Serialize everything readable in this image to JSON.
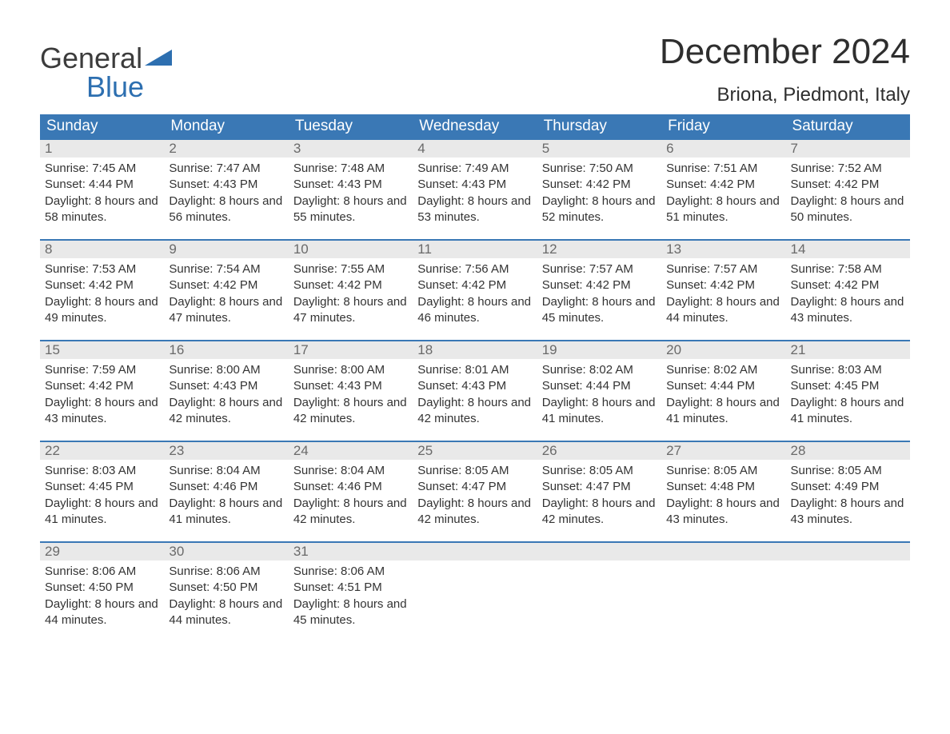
{
  "logo": {
    "line1": "General",
    "line2": "Blue"
  },
  "title": {
    "month": "December 2024",
    "location": "Briona, Piedmont, Italy"
  },
  "colors": {
    "header_bg": "#3a78b5",
    "header_text": "#ffffff",
    "border": "#3a78b5",
    "daybar_bg": "#e9e9e9",
    "daybar_text": "#6a6a6a",
    "body_text": "#333333",
    "logo_blue": "#2d6fb0",
    "logo_gray": "#3c3c3c",
    "background": "#ffffff"
  },
  "fontsize": {
    "title_month": 44,
    "title_location": 24,
    "header": 19,
    "daynum": 17,
    "body": 15,
    "logo": 36
  },
  "dayNames": [
    "Sunday",
    "Monday",
    "Tuesday",
    "Wednesday",
    "Thursday",
    "Friday",
    "Saturday"
  ],
  "weeks": [
    [
      {
        "n": "1",
        "sr": "7:45 AM",
        "ss": "4:44 PM",
        "dl": "8 hours and 58 minutes."
      },
      {
        "n": "2",
        "sr": "7:47 AM",
        "ss": "4:43 PM",
        "dl": "8 hours and 56 minutes."
      },
      {
        "n": "3",
        "sr": "7:48 AM",
        "ss": "4:43 PM",
        "dl": "8 hours and 55 minutes."
      },
      {
        "n": "4",
        "sr": "7:49 AM",
        "ss": "4:43 PM",
        "dl": "8 hours and 53 minutes."
      },
      {
        "n": "5",
        "sr": "7:50 AM",
        "ss": "4:42 PM",
        "dl": "8 hours and 52 minutes."
      },
      {
        "n": "6",
        "sr": "7:51 AM",
        "ss": "4:42 PM",
        "dl": "8 hours and 51 minutes."
      },
      {
        "n": "7",
        "sr": "7:52 AM",
        "ss": "4:42 PM",
        "dl": "8 hours and 50 minutes."
      }
    ],
    [
      {
        "n": "8",
        "sr": "7:53 AM",
        "ss": "4:42 PM",
        "dl": "8 hours and 49 minutes."
      },
      {
        "n": "9",
        "sr": "7:54 AM",
        "ss": "4:42 PM",
        "dl": "8 hours and 47 minutes."
      },
      {
        "n": "10",
        "sr": "7:55 AM",
        "ss": "4:42 PM",
        "dl": "8 hours and 47 minutes."
      },
      {
        "n": "11",
        "sr": "7:56 AM",
        "ss": "4:42 PM",
        "dl": "8 hours and 46 minutes."
      },
      {
        "n": "12",
        "sr": "7:57 AM",
        "ss": "4:42 PM",
        "dl": "8 hours and 45 minutes."
      },
      {
        "n": "13",
        "sr": "7:57 AM",
        "ss": "4:42 PM",
        "dl": "8 hours and 44 minutes."
      },
      {
        "n": "14",
        "sr": "7:58 AM",
        "ss": "4:42 PM",
        "dl": "8 hours and 43 minutes."
      }
    ],
    [
      {
        "n": "15",
        "sr": "7:59 AM",
        "ss": "4:42 PM",
        "dl": "8 hours and 43 minutes."
      },
      {
        "n": "16",
        "sr": "8:00 AM",
        "ss": "4:43 PM",
        "dl": "8 hours and 42 minutes."
      },
      {
        "n": "17",
        "sr": "8:00 AM",
        "ss": "4:43 PM",
        "dl": "8 hours and 42 minutes."
      },
      {
        "n": "18",
        "sr": "8:01 AM",
        "ss": "4:43 PM",
        "dl": "8 hours and 42 minutes."
      },
      {
        "n": "19",
        "sr": "8:02 AM",
        "ss": "4:44 PM",
        "dl": "8 hours and 41 minutes."
      },
      {
        "n": "20",
        "sr": "8:02 AM",
        "ss": "4:44 PM",
        "dl": "8 hours and 41 minutes."
      },
      {
        "n": "21",
        "sr": "8:03 AM",
        "ss": "4:45 PM",
        "dl": "8 hours and 41 minutes."
      }
    ],
    [
      {
        "n": "22",
        "sr": "8:03 AM",
        "ss": "4:45 PM",
        "dl": "8 hours and 41 minutes."
      },
      {
        "n": "23",
        "sr": "8:04 AM",
        "ss": "4:46 PM",
        "dl": "8 hours and 41 minutes."
      },
      {
        "n": "24",
        "sr": "8:04 AM",
        "ss": "4:46 PM",
        "dl": "8 hours and 42 minutes."
      },
      {
        "n": "25",
        "sr": "8:05 AM",
        "ss": "4:47 PM",
        "dl": "8 hours and 42 minutes."
      },
      {
        "n": "26",
        "sr": "8:05 AM",
        "ss": "4:47 PM",
        "dl": "8 hours and 42 minutes."
      },
      {
        "n": "27",
        "sr": "8:05 AM",
        "ss": "4:48 PM",
        "dl": "8 hours and 43 minutes."
      },
      {
        "n": "28",
        "sr": "8:05 AM",
        "ss": "4:49 PM",
        "dl": "8 hours and 43 minutes."
      }
    ],
    [
      {
        "n": "29",
        "sr": "8:06 AM",
        "ss": "4:50 PM",
        "dl": "8 hours and 44 minutes."
      },
      {
        "n": "30",
        "sr": "8:06 AM",
        "ss": "4:50 PM",
        "dl": "8 hours and 44 minutes."
      },
      {
        "n": "31",
        "sr": "8:06 AM",
        "ss": "4:51 PM",
        "dl": "8 hours and 45 minutes."
      },
      null,
      null,
      null,
      null
    ]
  ],
  "labels": {
    "sunrise": "Sunrise: ",
    "sunset": "Sunset: ",
    "daylight": "Daylight: "
  }
}
